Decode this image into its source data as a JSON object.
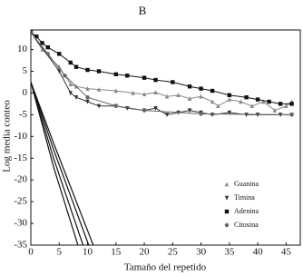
{
  "chart_data": {
    "type": "line",
    "title": "B",
    "x_label": "Tamaño del repetido",
    "y_label": "Log media conteo",
    "xlim": [
      0,
      47.5
    ],
    "ylim": [
      -35,
      14.5
    ],
    "xticks": [
      0,
      5,
      10,
      15,
      20,
      25,
      30,
      35,
      40,
      45
    ],
    "yticks": [
      -35,
      -30,
      -25,
      -20,
      -15,
      -10,
      -5,
      0,
      5,
      10
    ],
    "series": [
      {
        "name": "Guanina",
        "color": "#888888",
        "marker": "triangle-up",
        "x": [
          0,
          2,
          5,
          7,
          8,
          10,
          12,
          15,
          18,
          20,
          22,
          24,
          26,
          28,
          30,
          32,
          33,
          35,
          37,
          39,
          41,
          43,
          45,
          46
        ],
        "values": [
          14,
          10,
          6,
          2,
          1.5,
          1,
          0.8,
          0.5,
          0,
          -0.3,
          0.1,
          -0.8,
          -0.5,
          -1.3,
          -0.8,
          -2,
          -3,
          -1.5,
          -2,
          -3,
          -2,
          -4,
          -3,
          -2
        ]
      },
      {
        "name": "Timina",
        "color": "#333333",
        "marker": "triangle-down",
        "x": [
          0,
          5,
          7,
          8,
          10,
          12,
          15,
          17,
          20,
          22,
          24,
          26,
          28,
          30,
          32,
          35,
          38,
          40,
          44,
          46
        ],
        "values": [
          14,
          5,
          0,
          -1,
          -2,
          -3,
          -3,
          -3.5,
          -4,
          -3.5,
          -5,
          -4.5,
          -4,
          -4.5,
          -5,
          -4.5,
          -5,
          -5,
          -5,
          -5
        ]
      },
      {
        "name": "Adenina",
        "color": "#111111",
        "marker": "square",
        "x": [
          0,
          1,
          2,
          3,
          5,
          7,
          8,
          10,
          12,
          15,
          17,
          20,
          22,
          25,
          28,
          30,
          32,
          35,
          38,
          40,
          42,
          44,
          46
        ],
        "values": [
          14,
          13,
          11.5,
          10.5,
          9,
          7,
          6,
          5.3,
          5,
          4.3,
          4,
          3.5,
          3,
          2.5,
          1.5,
          1,
          0.5,
          -0.5,
          -1,
          -1.5,
          -2,
          -2.5,
          -2.5
        ]
      },
      {
        "name": "Citosina",
        "color": "#666666",
        "marker": "circle",
        "x": [
          0,
          3,
          6,
          10,
          15,
          20,
          30,
          46
        ],
        "values": [
          14,
          9,
          4,
          -1,
          -3,
          -4,
          -4.8,
          -5
        ]
      }
    ],
    "curves": [
      {
        "x": [
          0,
          4,
          8.3
        ],
        "values": [
          2.5,
          -17,
          -35
        ],
        "color": "#111111"
      },
      {
        "x": [
          0,
          4,
          9.2
        ],
        "values": [
          2.5,
          -15,
          -35
        ],
        "color": "#111111"
      },
      {
        "x": [
          0,
          4,
          10.2
        ],
        "values": [
          2.5,
          -13,
          -35
        ],
        "color": "#111111"
      },
      {
        "x": [
          0,
          4,
          11
        ],
        "values": [
          2.5,
          -11.5,
          -35
        ],
        "color": "#111111"
      }
    ]
  }
}
